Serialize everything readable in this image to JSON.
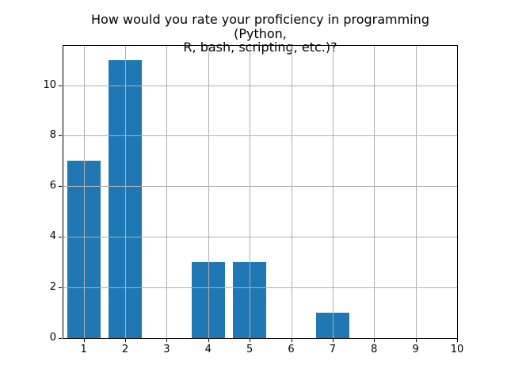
{
  "figure": {
    "title_lines": [
      "How would you rate your proficiency in programming (Python,",
      "R, bash, scripting, etc.)?"
    ]
  },
  "chart_data": {
    "type": "bar",
    "title": "How would you rate your proficiency in programming (Python, R, bash, scripting, etc.)?",
    "categories": [
      1,
      2,
      3,
      4,
      5,
      6,
      7,
      8,
      9,
      10
    ],
    "values": [
      7,
      11,
      0,
      3,
      3,
      0,
      1,
      0,
      0,
      0
    ],
    "xlabel": "",
    "ylabel": "",
    "xlim": [
      0.51,
      10.0
    ],
    "ylim": [
      0,
      11.55
    ],
    "xticks": [
      1,
      2,
      3,
      4,
      5,
      6,
      7,
      8,
      9,
      10
    ],
    "xtick_labels": [
      "1",
      "2",
      "3",
      "4",
      "5",
      "6",
      "7",
      "8",
      "9",
      "10"
    ],
    "yticks": [
      0,
      2,
      4,
      6,
      8,
      10
    ],
    "ytick_labels": [
      "0",
      "2",
      "4",
      "6",
      "8",
      "10"
    ],
    "bar_width": 0.8,
    "bar_color": "#1f77b4",
    "grid": true,
    "grid_color": "#b0b0b0",
    "grid_above_bars": true,
    "spine_color": "#000000",
    "tick_color": "#000000",
    "background_color": "#ffffff",
    "legend": null
  }
}
